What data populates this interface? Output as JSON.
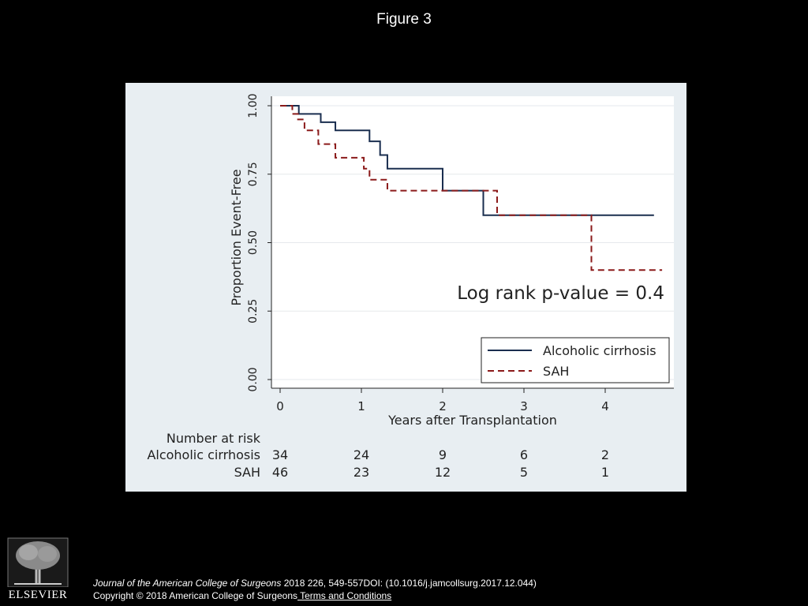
{
  "slide": {
    "title": "Figure 3",
    "citation_journal": "Journal of the American College of Surgeons",
    "citation_details": " 2018 226, 549-557DOI: (10.1016/j.jamcollsurg.2017.12.044)",
    "copyright": "Copyright © 2018 American College of Surgeons",
    "terms_link": " Terms and Conditions",
    "publisher_logo": "ELSEVIER"
  },
  "colors": {
    "panel_bg": "#e8eef2",
    "plot_bg": "#ffffff",
    "series_cirrhosis": "#1a2e4f",
    "series_sah": "#8b1a1a"
  },
  "chart_data": {
    "type": "line",
    "step": true,
    "ylabel": "Proportion Event-Free",
    "xlabel": "Years after Transplantation",
    "xlim": [
      0,
      4.85
    ],
    "ylim": [
      0,
      1.0
    ],
    "xticks": [
      0,
      1,
      2,
      3,
      4
    ],
    "xtick_labels": [
      "0",
      "1",
      "2",
      "3",
      "4"
    ],
    "yticks": [
      0,
      0.25,
      0.5,
      0.75,
      1.0
    ],
    "ytick_labels": [
      "0.00",
      "0.25",
      "0.50",
      "0.75",
      "1.00"
    ],
    "grid": true,
    "legend_position": "bottom-right",
    "annotation": "Log rank p-value = 0.4",
    "series": [
      {
        "name": "Alcoholic cirrhosis",
        "style": "solid",
        "x": [
          0,
          0.23,
          0.5,
          0.68,
          1.1,
          1.23,
          1.32,
          2.0,
          2.5,
          4.6
        ],
        "y": [
          1.0,
          0.97,
          0.94,
          0.91,
          0.87,
          0.82,
          0.77,
          0.69,
          0.6,
          0.6
        ]
      },
      {
        "name": "SAH",
        "style": "dashed",
        "x": [
          0,
          0.15,
          0.22,
          0.3,
          0.47,
          0.68,
          1.03,
          1.1,
          1.32,
          2.67,
          3.83,
          4.7
        ],
        "y": [
          1.0,
          0.97,
          0.95,
          0.91,
          0.86,
          0.81,
          0.77,
          0.73,
          0.69,
          0.6,
          0.4,
          0.4
        ]
      }
    ],
    "risk_table": {
      "header": "Number at risk",
      "rows": [
        {
          "label": "Alcoholic cirrhosis",
          "values": [
            "34",
            "24",
            "9",
            "6",
            "2"
          ]
        },
        {
          "label": "SAH",
          "values": [
            "46",
            "23",
            "12",
            "5",
            "1"
          ]
        }
      ]
    }
  }
}
